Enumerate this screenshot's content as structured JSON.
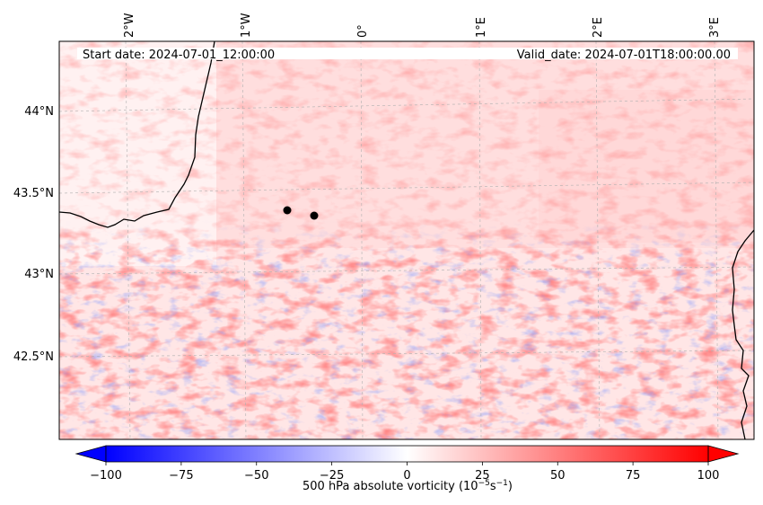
{
  "header": {
    "start_date": "Start date: 2024-07-01_12:00:00",
    "valid_date": "Valid_date: 2024-07-01T18:00:00.00"
  },
  "map": {
    "top_lon_labels": [
      "2°W",
      "1°W",
      "0°",
      "1°E",
      "2°E",
      "3°E"
    ],
    "lat_labels": [
      "44°N",
      "43.5°N",
      "43°N",
      "42.5°N"
    ],
    "field_colormap": "bwr",
    "markers": [
      {
        "name": "point-1",
        "color": "#000000"
      },
      {
        "name": "point-2",
        "color": "#000000"
      }
    ],
    "coastline_color": "#000000",
    "gridline_color": "#b0b0b0"
  },
  "colorbar": {
    "label_main": "500 hPa absolute vorticity (10",
    "label_exp1": "−5",
    "label_mid": "s",
    "label_exp2": "−1",
    "label_end": ")",
    "vmin": -100,
    "vmax": 100,
    "tick_labels": [
      "−100",
      "−75",
      "−50",
      "−25",
      "0",
      "25",
      "50",
      "75",
      "100"
    ],
    "colors": {
      "min": "#0000ff",
      "mid": "#ffffff",
      "max": "#ff0000"
    }
  }
}
